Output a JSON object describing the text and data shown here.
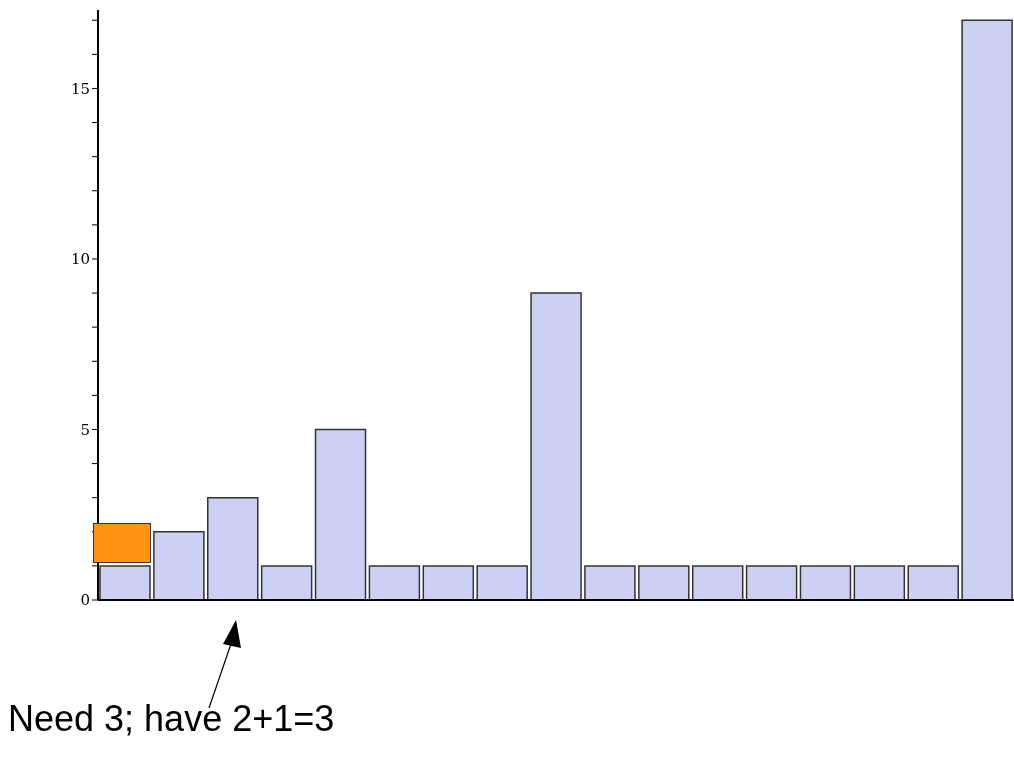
{
  "chart_data": {
    "type": "bar",
    "categories": [
      null,
      null,
      null,
      null,
      null,
      null,
      null,
      null,
      null,
      null,
      null,
      null,
      null,
      null,
      null,
      null,
      null
    ],
    "series": [
      {
        "color": "#ccd0f4",
        "values": [
          1,
          2,
          3,
          1,
          5,
          1,
          1,
          1,
          9,
          1,
          1,
          1,
          1,
          1,
          1,
          1,
          17
        ]
      }
    ],
    "ylim": [
      0,
      17.3
    ],
    "yticks": [
      0,
      {
        "value": 1,
        "label": null
      },
      {
        "value": 2,
        "label": null
      },
      {
        "value": 3,
        "label": null
      },
      {
        "value": 4,
        "label": null
      },
      5,
      {
        "value": 6,
        "label": null
      },
      {
        "value": 7,
        "label": null
      },
      {
        "value": 8,
        "label": null
      },
      {
        "value": 9,
        "label": null
      },
      10,
      {
        "value": 11,
        "label": null
      },
      {
        "value": 12,
        "label": null
      },
      {
        "value": 13,
        "label": null
      },
      {
        "value": 14,
        "label": null
      },
      15,
      {
        "value": 16,
        "label": null
      },
      {
        "value": 17,
        "label": null
      }
    ],
    "annotations": [
      "Need 3; have 2+1=3"
    ]
  }
}
